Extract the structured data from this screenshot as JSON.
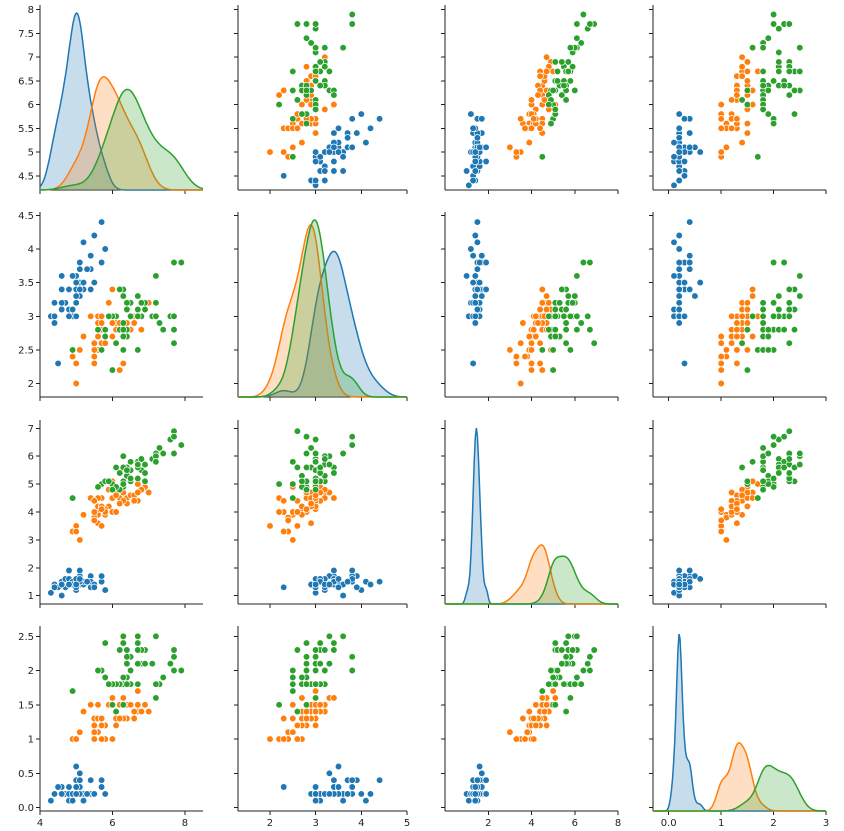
{
  "chart_data": {
    "type": "scatter",
    "series": [
      {
        "name": "",
        "color": "#1f77b4",
        "fill": "#1f77b4"
      },
      {
        "name": "",
        "color": "#ff7f0e",
        "fill": "#ff7f0e"
      },
      {
        "name": "",
        "color": "#2ca02c",
        "fill": "#2ca02c"
      }
    ],
    "variables": [
      {
        "label": "",
        "lim": [
          4.0,
          8.5
        ],
        "ticks": [
          4,
          6,
          8
        ],
        "yticks": [
          4.5,
          5.0,
          5.5,
          6.0,
          6.5,
          7.0,
          7.5,
          8.0
        ]
      },
      {
        "label": "",
        "lim": [
          1.3,
          5.0
        ],
        "ticks": [
          2,
          3,
          4,
          5
        ],
        "yticks": [
          2.0,
          2.5,
          3.0,
          3.5,
          4.0,
          4.5
        ]
      },
      {
        "label": "",
        "lim": [
          0.0,
          8.0
        ],
        "ticks": [
          2,
          4,
          6,
          8
        ],
        "yticks": [
          1,
          2,
          3,
          4,
          5,
          6,
          7
        ]
      },
      {
        "label": "",
        "lim": [
          -0.3,
          3.0
        ],
        "ticks": [
          0,
          1,
          2,
          3
        ],
        "yticks": [
          0.0,
          0.5,
          1.0,
          1.5,
          2.0,
          2.5
        ]
      }
    ],
    "diag_ylim_rows": [
      [
        4.2,
        8.1
      ],
      [
        1.8,
        4.55
      ],
      [
        0.7,
        7.3
      ],
      [
        -0.05,
        2.65
      ]
    ],
    "data": [
      [
        [
          5.1,
          3.5,
          1.4,
          0.2
        ],
        [
          4.9,
          3.0,
          1.4,
          0.2
        ],
        [
          4.7,
          3.2,
          1.3,
          0.2
        ],
        [
          4.6,
          3.1,
          1.5,
          0.2
        ],
        [
          5.0,
          3.6,
          1.4,
          0.2
        ],
        [
          5.4,
          3.9,
          1.7,
          0.4
        ],
        [
          4.6,
          3.4,
          1.4,
          0.3
        ],
        [
          5.0,
          3.4,
          1.5,
          0.2
        ],
        [
          4.4,
          2.9,
          1.4,
          0.2
        ],
        [
          4.9,
          3.1,
          1.5,
          0.1
        ],
        [
          5.4,
          3.7,
          1.5,
          0.2
        ],
        [
          4.8,
          3.4,
          1.6,
          0.2
        ],
        [
          4.8,
          3.0,
          1.4,
          0.1
        ],
        [
          4.3,
          3.0,
          1.1,
          0.1
        ],
        [
          5.8,
          4.0,
          1.2,
          0.2
        ],
        [
          5.7,
          4.4,
          1.5,
          0.4
        ],
        [
          5.4,
          3.9,
          1.3,
          0.4
        ],
        [
          5.1,
          3.5,
          1.4,
          0.3
        ],
        [
          5.7,
          3.8,
          1.7,
          0.3
        ],
        [
          5.1,
          3.8,
          1.5,
          0.3
        ],
        [
          5.4,
          3.4,
          1.7,
          0.2
        ],
        [
          5.1,
          3.7,
          1.5,
          0.4
        ],
        [
          4.6,
          3.6,
          1.0,
          0.2
        ],
        [
          5.1,
          3.3,
          1.7,
          0.5
        ],
        [
          4.8,
          3.4,
          1.9,
          0.2
        ],
        [
          5.0,
          3.0,
          1.6,
          0.2
        ],
        [
          5.0,
          3.4,
          1.6,
          0.4
        ],
        [
          5.2,
          3.5,
          1.5,
          0.2
        ],
        [
          5.2,
          3.4,
          1.4,
          0.2
        ],
        [
          4.7,
          3.2,
          1.6,
          0.2
        ],
        [
          4.8,
          3.1,
          1.6,
          0.2
        ],
        [
          5.4,
          3.4,
          1.5,
          0.4
        ],
        [
          5.2,
          4.1,
          1.5,
          0.1
        ],
        [
          5.5,
          4.2,
          1.4,
          0.2
        ],
        [
          4.9,
          3.1,
          1.5,
          0.2
        ],
        [
          5.0,
          3.2,
          1.2,
          0.2
        ],
        [
          5.5,
          3.5,
          1.3,
          0.2
        ],
        [
          4.9,
          3.6,
          1.4,
          0.1
        ],
        [
          4.4,
          3.0,
          1.3,
          0.2
        ],
        [
          5.1,
          3.4,
          1.5,
          0.2
        ],
        [
          5.0,
          3.5,
          1.3,
          0.3
        ],
        [
          4.5,
          2.3,
          1.3,
          0.3
        ],
        [
          4.4,
          3.2,
          1.3,
          0.2
        ],
        [
          5.0,
          3.5,
          1.6,
          0.6
        ],
        [
          5.1,
          3.8,
          1.9,
          0.4
        ],
        [
          4.8,
          3.0,
          1.4,
          0.3
        ],
        [
          5.1,
          3.8,
          1.6,
          0.2
        ],
        [
          4.6,
          3.2,
          1.4,
          0.2
        ],
        [
          5.3,
          3.7,
          1.5,
          0.2
        ],
        [
          5.0,
          3.3,
          1.4,
          0.2
        ]
      ],
      [
        [
          7.0,
          3.2,
          4.7,
          1.4
        ],
        [
          6.4,
          3.2,
          4.5,
          1.5
        ],
        [
          6.9,
          3.1,
          4.9,
          1.5
        ],
        [
          5.5,
          2.3,
          4.0,
          1.3
        ],
        [
          6.5,
          2.8,
          4.6,
          1.5
        ],
        [
          5.7,
          2.8,
          4.5,
          1.3
        ],
        [
          6.3,
          3.3,
          4.7,
          1.6
        ],
        [
          4.9,
          2.4,
          3.3,
          1.0
        ],
        [
          6.6,
          2.9,
          4.6,
          1.3
        ],
        [
          5.2,
          2.7,
          3.9,
          1.4
        ],
        [
          5.0,
          2.0,
          3.5,
          1.0
        ],
        [
          5.9,
          3.0,
          4.2,
          1.5
        ],
        [
          6.0,
          2.2,
          4.0,
          1.0
        ],
        [
          6.1,
          2.9,
          4.7,
          1.4
        ],
        [
          5.6,
          2.9,
          3.6,
          1.3
        ],
        [
          6.7,
          3.1,
          4.4,
          1.4
        ],
        [
          5.6,
          3.0,
          4.5,
          1.5
        ],
        [
          5.8,
          2.7,
          4.1,
          1.0
        ],
        [
          6.2,
          2.2,
          4.5,
          1.5
        ],
        [
          5.6,
          2.5,
          3.9,
          1.1
        ],
        [
          5.9,
          3.2,
          4.8,
          1.8
        ],
        [
          6.1,
          2.8,
          4.0,
          1.3
        ],
        [
          6.3,
          2.5,
          4.9,
          1.5
        ],
        [
          6.1,
          2.8,
          4.7,
          1.2
        ],
        [
          6.4,
          2.9,
          4.3,
          1.3
        ],
        [
          6.6,
          3.0,
          4.4,
          1.4
        ],
        [
          6.8,
          2.8,
          4.8,
          1.4
        ],
        [
          6.7,
          3.0,
          5.0,
          1.7
        ],
        [
          6.0,
          2.9,
          4.5,
          1.5
        ],
        [
          5.7,
          2.6,
          3.5,
          1.0
        ],
        [
          5.5,
          2.4,
          3.8,
          1.1
        ],
        [
          5.5,
          2.4,
          3.7,
          1.0
        ],
        [
          5.8,
          2.7,
          3.9,
          1.2
        ],
        [
          6.0,
          2.7,
          5.1,
          1.6
        ],
        [
          5.4,
          3.0,
          4.5,
          1.5
        ],
        [
          6.0,
          3.4,
          4.5,
          1.6
        ],
        [
          6.7,
          3.1,
          4.7,
          1.5
        ],
        [
          6.3,
          2.3,
          4.4,
          1.3
        ],
        [
          5.6,
          3.0,
          4.1,
          1.3
        ],
        [
          5.5,
          2.5,
          4.0,
          1.3
        ],
        [
          5.5,
          2.6,
          4.4,
          1.2
        ],
        [
          6.1,
          3.0,
          4.6,
          1.4
        ],
        [
          5.8,
          2.6,
          4.0,
          1.2
        ],
        [
          5.0,
          2.3,
          3.3,
          1.0
        ],
        [
          5.6,
          2.7,
          4.2,
          1.3
        ],
        [
          5.7,
          3.0,
          4.2,
          1.2
        ],
        [
          5.7,
          2.9,
          4.2,
          1.3
        ],
        [
          6.2,
          2.9,
          4.3,
          1.3
        ],
        [
          5.1,
          2.5,
          3.0,
          1.1
        ],
        [
          5.7,
          2.8,
          4.1,
          1.3
        ]
      ],
      [
        [
          6.3,
          3.3,
          6.0,
          2.5
        ],
        [
          5.8,
          2.7,
          5.1,
          1.9
        ],
        [
          7.1,
          3.0,
          5.9,
          2.1
        ],
        [
          6.3,
          2.9,
          5.6,
          1.8
        ],
        [
          6.5,
          3.0,
          5.8,
          2.2
        ],
        [
          7.6,
          3.0,
          6.6,
          2.1
        ],
        [
          4.9,
          2.5,
          4.5,
          1.7
        ],
        [
          7.3,
          2.9,
          6.3,
          1.8
        ],
        [
          6.7,
          2.5,
          5.8,
          1.8
        ],
        [
          7.2,
          3.6,
          6.1,
          2.5
        ],
        [
          6.5,
          3.2,
          5.1,
          2.0
        ],
        [
          6.4,
          2.7,
          5.3,
          1.9
        ],
        [
          6.8,
          3.0,
          5.5,
          2.1
        ],
        [
          5.7,
          2.5,
          5.0,
          2.0
        ],
        [
          5.8,
          2.8,
          5.1,
          2.4
        ],
        [
          6.4,
          3.2,
          5.3,
          2.3
        ],
        [
          6.5,
          3.0,
          5.5,
          1.8
        ],
        [
          7.7,
          3.8,
          6.7,
          2.2
        ],
        [
          7.7,
          2.6,
          6.9,
          2.3
        ],
        [
          6.0,
          2.2,
          5.0,
          1.5
        ],
        [
          6.9,
          3.2,
          5.7,
          2.3
        ],
        [
          5.6,
          2.8,
          4.9,
          2.0
        ],
        [
          7.7,
          2.8,
          6.7,
          2.0
        ],
        [
          6.3,
          2.7,
          4.9,
          1.8
        ],
        [
          6.7,
          3.3,
          5.7,
          2.1
        ],
        [
          7.2,
          3.2,
          6.0,
          1.8
        ],
        [
          6.2,
          2.8,
          4.8,
          1.8
        ],
        [
          6.1,
          3.0,
          4.9,
          1.8
        ],
        [
          6.4,
          2.8,
          5.6,
          2.1
        ],
        [
          7.2,
          3.0,
          5.8,
          1.6
        ],
        [
          7.4,
          2.8,
          6.1,
          1.9
        ],
        [
          7.9,
          3.8,
          6.4,
          2.0
        ],
        [
          6.4,
          2.8,
          5.6,
          2.2
        ],
        [
          6.3,
          2.8,
          5.1,
          1.5
        ],
        [
          6.1,
          2.6,
          5.6,
          1.4
        ],
        [
          7.7,
          3.0,
          6.1,
          2.3
        ],
        [
          6.3,
          3.4,
          5.6,
          2.4
        ],
        [
          6.4,
          3.1,
          5.5,
          1.8
        ],
        [
          6.0,
          3.0,
          4.8,
          1.8
        ],
        [
          6.9,
          3.1,
          5.4,
          2.1
        ],
        [
          6.7,
          3.1,
          5.6,
          2.4
        ],
        [
          6.9,
          3.1,
          5.1,
          2.3
        ],
        [
          5.8,
          2.7,
          5.1,
          1.9
        ],
        [
          6.8,
          3.2,
          5.9,
          2.3
        ],
        [
          6.7,
          3.3,
          5.7,
          2.5
        ],
        [
          6.7,
          3.0,
          5.2,
          2.3
        ],
        [
          6.3,
          2.5,
          5.0,
          1.9
        ],
        [
          6.5,
          3.0,
          5.2,
          2.0
        ],
        [
          6.2,
          3.4,
          5.4,
          2.3
        ],
        [
          5.9,
          3.0,
          5.1,
          1.8
        ]
      ]
    ]
  }
}
